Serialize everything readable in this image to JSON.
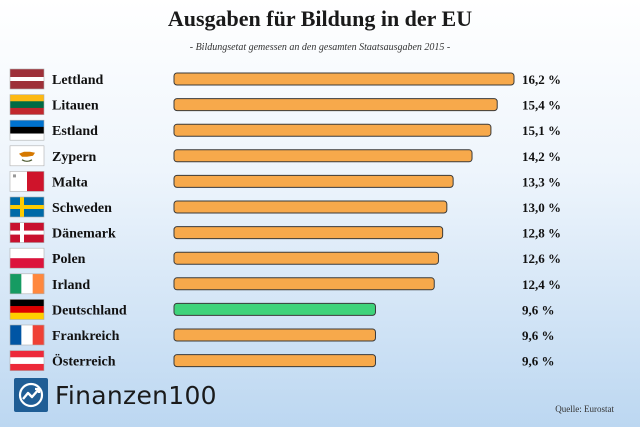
{
  "chart_data": {
    "type": "bar",
    "orientation": "horizontal",
    "title": "Ausgaben für Bildung in der EU",
    "subtitle": "- Bildungsetat gemessen an den gesamten Staatsausgaben 2015 -",
    "source": "Quelle: Eurostat",
    "categories": [
      "Lettland",
      "Litauen",
      "Estland",
      "Zypern",
      "Malta",
      "Schweden",
      "Dänemark",
      "Polen",
      "Irland",
      "Deutschland",
      "Frankreich",
      "Österreich"
    ],
    "values": [
      16.2,
      15.4,
      15.1,
      14.2,
      13.3,
      13.0,
      12.8,
      12.6,
      12.4,
      9.6,
      9.6,
      9.6
    ],
    "value_labels": [
      "16,2 %",
      "15,4 %",
      "15,1 %",
      "14,2 %",
      "13,3 %",
      "13,0 %",
      "12,8 %",
      "12,6 %",
      "12,4 %",
      "9,6 %",
      "9,6 %",
      "9,6 %"
    ],
    "xlim": [
      0,
      16.2
    ],
    "unit": "%",
    "bar_colors": [
      "#f7a94b",
      "#f7a94b",
      "#f7a94b",
      "#f7a94b",
      "#f7a94b",
      "#f7a94b",
      "#f7a94b",
      "#f7a94b",
      "#f7a94b",
      "#3ed37a",
      "#f7a94b",
      "#f7a94b"
    ],
    "flags": [
      "flag-latvia-icon",
      "flag-lithuania-icon",
      "flag-estonia-icon",
      "flag-cyprus-icon",
      "flag-malta-icon",
      "flag-sweden-icon",
      "flag-denmark-icon",
      "flag-poland-icon",
      "flag-ireland-icon",
      "flag-germany-icon",
      "flag-france-icon",
      "flag-austria-icon"
    ]
  },
  "brand": {
    "name": "Finanzen100",
    "color": "#1f5d95"
  }
}
